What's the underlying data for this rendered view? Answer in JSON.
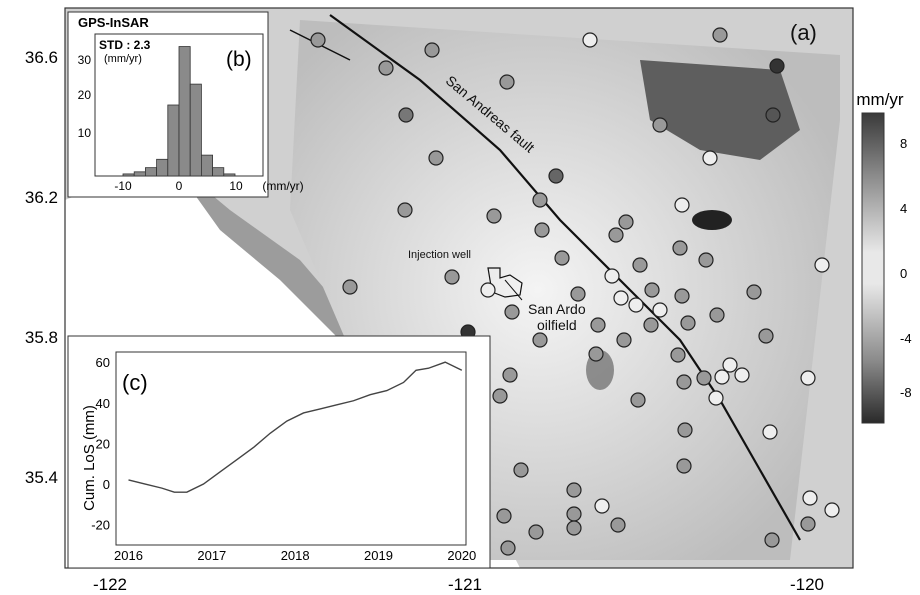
{
  "main_map": {
    "panel_label": "(a)",
    "x_ticks": [
      "-122",
      "-121",
      "-120"
    ],
    "y_ticks": [
      "36.6",
      "36.2",
      "35.8",
      "35.4"
    ],
    "fault_label": "San Andreas fault",
    "injection_label": "Injection well",
    "oilfield_label_1": "San Ardo",
    "oilfield_label_2": "oilfield"
  },
  "colorbar": {
    "unit": "mm/yr",
    "ticks": [
      "8",
      "4",
      "0",
      "-4",
      "-8"
    ]
  },
  "inset_b": {
    "panel_label": "(b)",
    "title": "GPS-InSAR",
    "std_text": "STD : 2.3",
    "std_unit": "(mm/yr)",
    "x_unit": "(mm/yr)",
    "x_ticks": [
      "-10",
      "0",
      "10"
    ],
    "y_ticks": [
      "30",
      "20",
      "10"
    ]
  },
  "inset_c": {
    "panel_label": "(c)",
    "ylabel": "Cum. LoS (mm)",
    "y_ticks": [
      "60",
      "40",
      "20",
      "0",
      "-20"
    ],
    "x_ticks": [
      "2016",
      "2017",
      "2018",
      "2019",
      "2020"
    ]
  },
  "chart_data": [
    {
      "type": "bar",
      "panel": "(b)",
      "title": "GPS-InSAR",
      "xlabel": "(mm/yr)",
      "ylabel": "",
      "bin_edges": [
        -10,
        -8,
        -6,
        -4,
        -2,
        0,
        2,
        4,
        6,
        8,
        10
      ],
      "values": [
        0.5,
        1,
        2,
        4,
        17,
        31,
        22,
        5,
        2,
        0.5
      ],
      "xlim": [
        -15,
        15
      ],
      "ylim": [
        0,
        34
      ]
    },
    {
      "type": "line",
      "panel": "(c)",
      "xlabel": "",
      "ylabel": "Cum. LoS (mm)",
      "x": [
        2016.0,
        2016.2,
        2016.4,
        2016.55,
        2016.7,
        2016.9,
        2017.1,
        2017.3,
        2017.5,
        2017.7,
        2017.9,
        2018.1,
        2018.3,
        2018.5,
        2018.7,
        2018.9,
        2019.1,
        2019.3,
        2019.45,
        2019.6,
        2019.8,
        2020.0
      ],
      "y": [
        2,
        0,
        -2,
        -4,
        -4,
        0,
        6,
        12,
        18,
        25,
        31,
        35,
        37,
        39,
        41,
        44,
        46,
        50,
        56,
        57,
        60,
        56
      ],
      "xlim": [
        2015.85,
        2020.05
      ],
      "ylim": [
        -30,
        65
      ]
    }
  ]
}
